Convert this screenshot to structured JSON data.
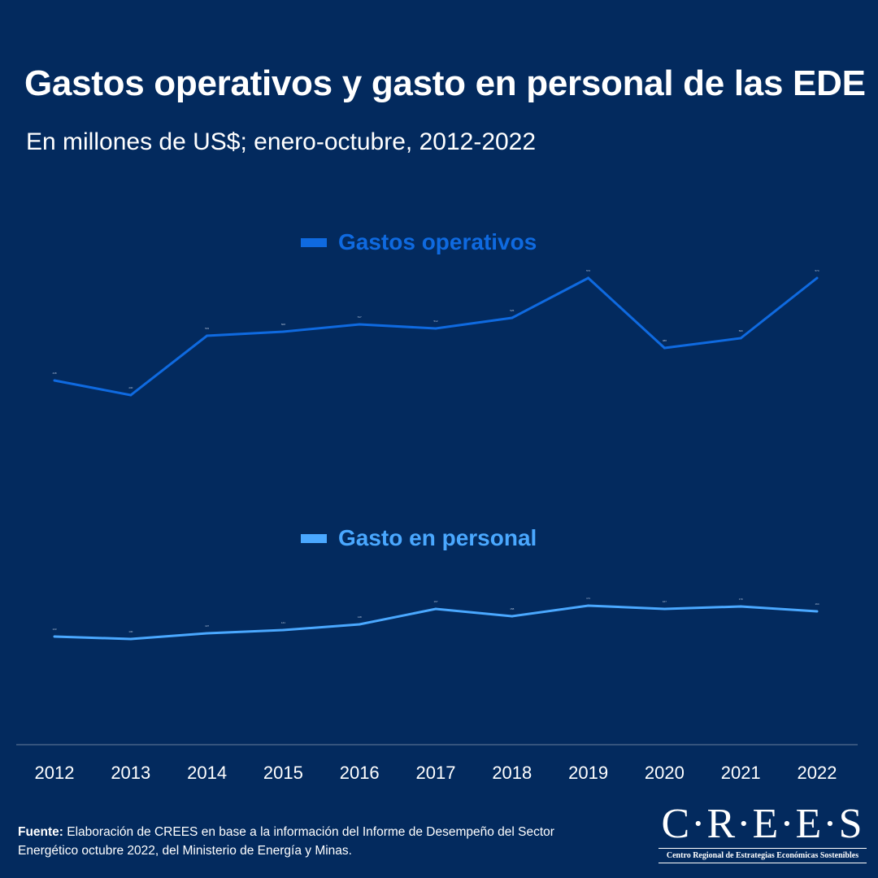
{
  "chart_data": {
    "type": "line",
    "title": "Gastos operativos y gasto en personal de las EDE",
    "subtitle": "En millones de US$; enero-octubre, 2012-2022",
    "categories": [
      "2012",
      "2013",
      "2014",
      "2015",
      "2016",
      "2017",
      "2018",
      "2019",
      "2020",
      "2021",
      "2022"
    ],
    "series": [
      {
        "name": "Gastos operativos",
        "color": "#0f6ae0",
        "values": [
          448,
          430,
          503,
          508,
          517,
          512,
          525,
          574,
          488,
          500,
          574
        ]
      },
      {
        "name": "Gasto en personal",
        "color": "#4aa8ff",
        "values": [
          133,
          130,
          137,
          141,
          148,
          167,
          158,
          171,
          167,
          170,
          164
        ]
      }
    ],
    "xlabel": "",
    "ylabel": "",
    "grid": false,
    "legend": "above each series"
  },
  "source": {
    "label": "Fuente:",
    "text": " Elaboración de CREES en base a la información del Informe de Desempeño del Sector Energético octubre 2022, del Ministerio de Energía y Minas."
  },
  "logo": {
    "name": "C·R·E·E·S",
    "tagline": "Centro Regional de Estrategias Económicas Sostenibles"
  }
}
